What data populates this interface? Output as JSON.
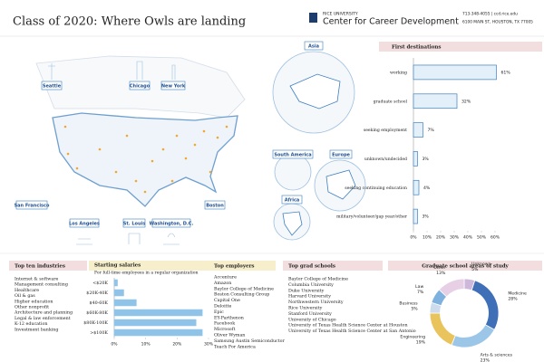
{
  "header": {
    "title": "Class of 2020: Where Owls are landing",
    "university": "RICE UNIVERSITY",
    "office": "Center for Career Development",
    "contact": "713-348-4055  |  ccd.rice.edu",
    "address": "6100 MAIN ST, HOUSTON, TX 77005"
  },
  "map": {
    "cities": [
      "Seattle",
      "Chicago",
      "New York",
      "San Francisco",
      "Los Angeles",
      "St. Louis",
      "Washington, D.C.",
      "Boston"
    ],
    "regions": [
      "Asia",
      "South America",
      "Europe",
      "Africa"
    ]
  },
  "industries": {
    "title": "Top ten industries",
    "items": [
      "Internet & software",
      "Management consulting",
      "Healthcare",
      "Oil & gas",
      "Higher education",
      "Other nonprofit",
      "Architecture and planning",
      "Legal & law enforcement",
      "K-12 education",
      "Investment banking"
    ]
  },
  "employers": {
    "title": "Top employers",
    "items": [
      "Accenture",
      "Amazon",
      "Baylor College of Medicine",
      "Boston Consulting Group",
      "Capital One",
      "Deloitte",
      "Epic",
      "EY-Parthenon",
      "Facebook",
      "Microsoft",
      "Oliver Wyman",
      "Samsung Austin Semiconductor",
      "Teach For America"
    ]
  },
  "grad_schools": {
    "title": "Top grad schools",
    "items": [
      "Baylor College of Medicine",
      "Columbia University",
      "Duke University",
      "Harvard University",
      "Northwestern University",
      "Rice University",
      "Stanford University",
      "University of Chicago",
      "University of Texas Health Science Center at Houston",
      "University of Texas Health Science Center at San Antonio"
    ]
  },
  "chart_data": [
    {
      "type": "bar",
      "orientation": "horizontal",
      "title": "First destinations",
      "categories": [
        "working",
        "graduate school",
        "seeking employment",
        "unknown/undecided",
        "seeking continuing education",
        "military/volunteer/gap year/other"
      ],
      "values": [
        61,
        32,
        7,
        3,
        4,
        3
      ],
      "value_labels": [
        "61%",
        "32%",
        "7%",
        "3%",
        "4%",
        "3%"
      ],
      "color": "#e3f0f9",
      "edge_color": "#3d7fc1",
      "xlim": [
        0,
        60
      ],
      "xticks": [
        {
          "value": 0,
          "label": "0%"
        },
        {
          "value": 10,
          "label": "10%"
        },
        {
          "value": 20,
          "label": "20%"
        },
        {
          "value": 30,
          "label": "30%"
        },
        {
          "value": 40,
          "label": "40%"
        },
        {
          "value": 50,
          "label": "50%"
        },
        {
          "value": 60,
          "label": "60%"
        }
      ],
      "grid": false
    },
    {
      "type": "bar",
      "orientation": "horizontal",
      "title": "Starting salaries",
      "subtitle": "For full-time employees in a regular organization",
      "categories": [
        "<$20K",
        "$20K-40K",
        "$40-60K",
        "$60K-80K",
        "$80K-100K",
        ">$100K"
      ],
      "values": [
        1,
        3,
        7,
        28,
        26,
        28
      ],
      "color": "#8fc4e8",
      "edge_color": "#8fc4e8",
      "xlim": [
        0,
        30
      ],
      "xticks": [
        {
          "value": 0,
          "label": "0%"
        },
        {
          "value": 10,
          "label": "10%"
        },
        {
          "value": 20,
          "label": "20%"
        },
        {
          "value": 30,
          "label": "30%"
        }
      ],
      "grid": false
    },
    {
      "type": "pie",
      "donut": true,
      "title": "Graduate school areas of study",
      "categories": [
        "Unknown",
        "Medicine",
        "Arts & sciences",
        "Engineering",
        "Business",
        "Law",
        "Other"
      ],
      "values": [
        5,
        28,
        23,
        19,
        5,
        7,
        13
      ],
      "value_labels": [
        "5%",
        "28%",
        "23%",
        "19%",
        "5%",
        "7%",
        "13%"
      ],
      "colors": [
        "#cdb8dc",
        "#3f6fb6",
        "#9cc6e8",
        "#e9c45c",
        "#cddcec",
        "#7fb1de",
        "#e7cfe6"
      ]
    }
  ]
}
